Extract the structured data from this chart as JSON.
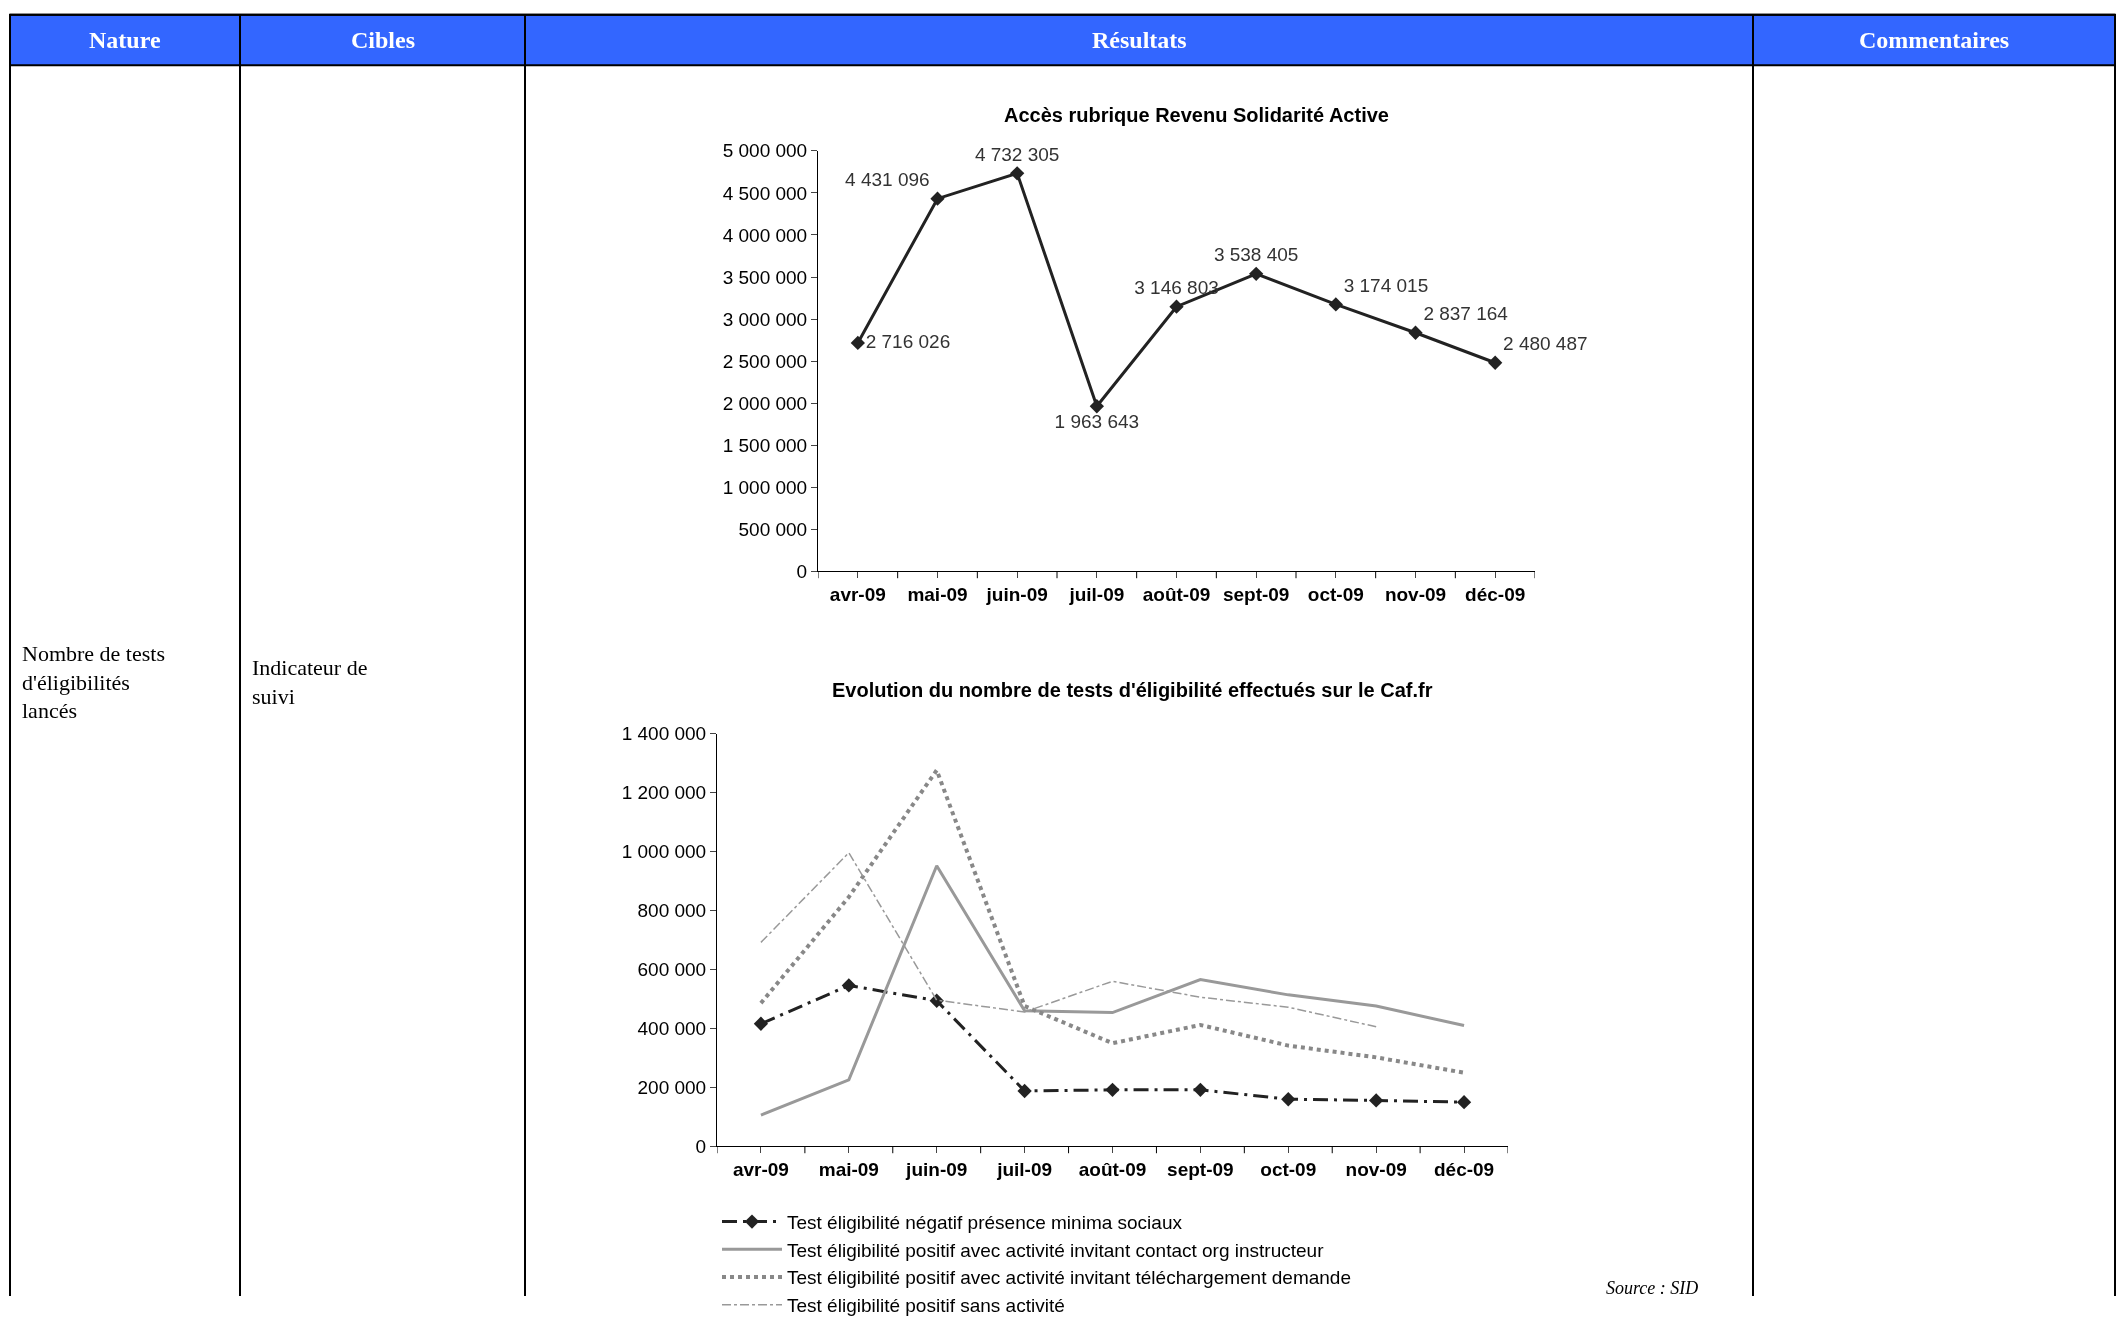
{
  "chart_data": [
    {
      "type": "other",
      "annotations": [
        "Nature",
        "Cibles",
        "Résultats",
        "Commentaires",
        "Nombre de tests d'éligibilités lancés",
        "Indicateur de suivi"
      ]
    },
    {
      "type": "line",
      "title": "Accès rubrique Revenu Solidarité Active",
      "categories": [
        "avr-09",
        "mai-09",
        "juin-09",
        "juil-09",
        "août-09",
        "sept-09",
        "oct-09",
        "nov-09",
        "déc-09"
      ],
      "series": [
        {
          "color": "#222222",
          "values": [
            2716026,
            4431096,
            4732305,
            1963643,
            3146803,
            3538405,
            3174015,
            2837164,
            2480487
          ],
          "value_labels": [
            "2 716 026",
            "4 431 096",
            "4 732 305",
            "1 963 643",
            "3 146 803",
            "3 538 405",
            "3 174 015",
            "2 837 164",
            "2 480 487"
          ],
          "marker": "diamond",
          "line_style": "solid"
        }
      ],
      "ylim": [
        0,
        5000000
      ],
      "yticks": [
        {
          "value": 0,
          "label": "0"
        },
        {
          "value": 500000,
          "label": "500 000"
        },
        {
          "value": 1000000,
          "label": "1 000 000"
        },
        {
          "value": 1500000,
          "label": "1 500 000"
        },
        {
          "value": 2000000,
          "label": "2 000 000"
        },
        {
          "value": 2500000,
          "label": "2 500 000"
        },
        {
          "value": 3000000,
          "label": "3 000 000"
        },
        {
          "value": 3500000,
          "label": "3 500 000"
        },
        {
          "value": 4000000,
          "label": "4 000 000"
        },
        {
          "value": 4500000,
          "label": "4 500 000"
        },
        {
          "value": 5000000,
          "label": "5 000 000"
        }
      ],
      "grid": false,
      "legend": false
    },
    {
      "type": "line",
      "title": "Evolution du nombre de tests d'éligibilité effectués sur le Caf.fr",
      "categories": [
        "avr-09",
        "mai-09",
        "juin-09",
        "juil-09",
        "août-09",
        "sept-09",
        "oct-09",
        "nov-09",
        "déc-09"
      ],
      "series": [
        {
          "name": "Test éligibilité négatif présence minima sociaux",
          "color": "#222222",
          "marker": "diamond",
          "line_style": "dashdot",
          "values": [
            416000,
            546000,
            494000,
            188000,
            192000,
            192000,
            160000,
            156000,
            150000
          ]
        },
        {
          "name": "Test éligibilité positif avec activité invitant contact org instructeur",
          "color": "#999999",
          "marker": "none",
          "line_style": "solid",
          "values": [
            106000,
            226000,
            952000,
            460000,
            454000,
            566000,
            514000,
            476000,
            410000
          ]
        },
        {
          "name": "Test éligibilité positif avec activité invitant téléchargement demande",
          "color": "#888888",
          "marker": "none",
          "line_style": "dotted",
          "values": [
            486000,
            846000,
            1276000,
            476000,
            350000,
            412000,
            342000,
            302000,
            250000
          ]
        },
        {
          "name": "Test éligibilité positif sans activité",
          "color": "#999999",
          "marker": "none",
          "line_style": "thin_dashdot",
          "values": [
            692000,
            996000,
            496000,
            456000,
            560000,
            506000,
            472000,
            406000,
            null
          ]
        }
      ],
      "ylim": [
        0,
        1400000
      ],
      "yticks": [
        {
          "value": 0,
          "label": "0"
        },
        {
          "value": 200000,
          "label": "200 000"
        },
        {
          "value": 400000,
          "label": "400 000"
        },
        {
          "value": 600000,
          "label": "600 000"
        },
        {
          "value": 800000,
          "label": "800 000"
        },
        {
          "value": 1000000,
          "label": "1 000 000"
        },
        {
          "value": 1200000,
          "label": "1 200 000"
        },
        {
          "value": 1400000,
          "label": "1 400 000"
        }
      ],
      "grid": false,
      "legend": "bottom",
      "annotations": [
        "Source : SID"
      ]
    }
  ]
}
